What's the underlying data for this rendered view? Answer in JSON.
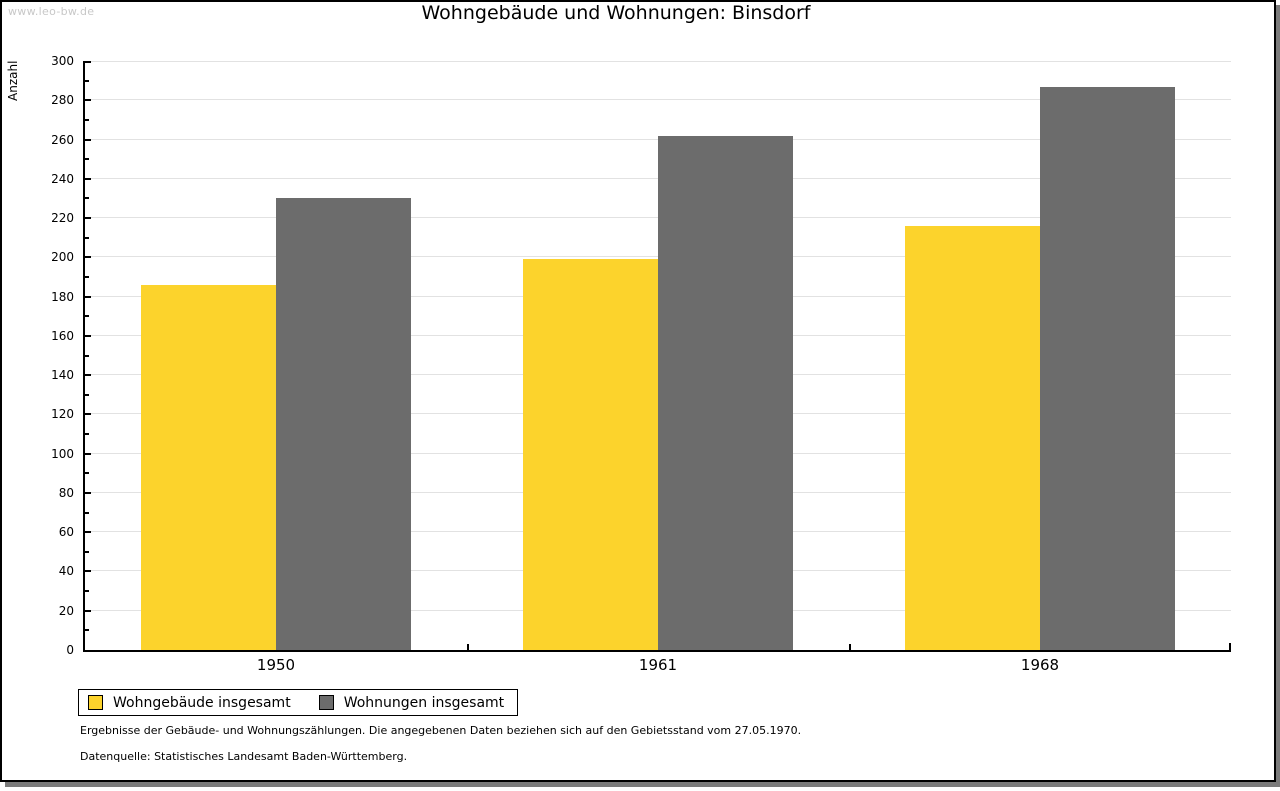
{
  "watermark": "www.leo-bw.de",
  "title": "Wohngebäude und Wohnungen: Binsdorf",
  "chart_data": {
    "type": "bar",
    "title": "Wohngebäude und Wohnungen: Binsdorf",
    "categories": [
      "1950",
      "1961",
      "1968"
    ],
    "series": [
      {
        "name": "Wohngebäude insgesamt",
        "color": "#fcd32c",
        "values": [
          186,
          199,
          216
        ]
      },
      {
        "name": "Wohnungen insgesamt",
        "color": "#6c6c6c",
        "values": [
          230,
          262,
          287
        ]
      }
    ],
    "xlabel": "",
    "ylabel": "Anzahl",
    "ylim": [
      0,
      300
    ],
    "ytick_step": 20,
    "minor_tick_step": 10,
    "grid": true,
    "legend_position": "bottom-left"
  },
  "footnotes": {
    "line1": "Ergebnisse der Gebäude- und Wohnungszählungen. Die angegebenen Daten beziehen sich auf den Gebietsstand vom 27.05.1970.",
    "line2": "Datenquelle: Statistisches Landesamt Baden-Württemberg."
  }
}
